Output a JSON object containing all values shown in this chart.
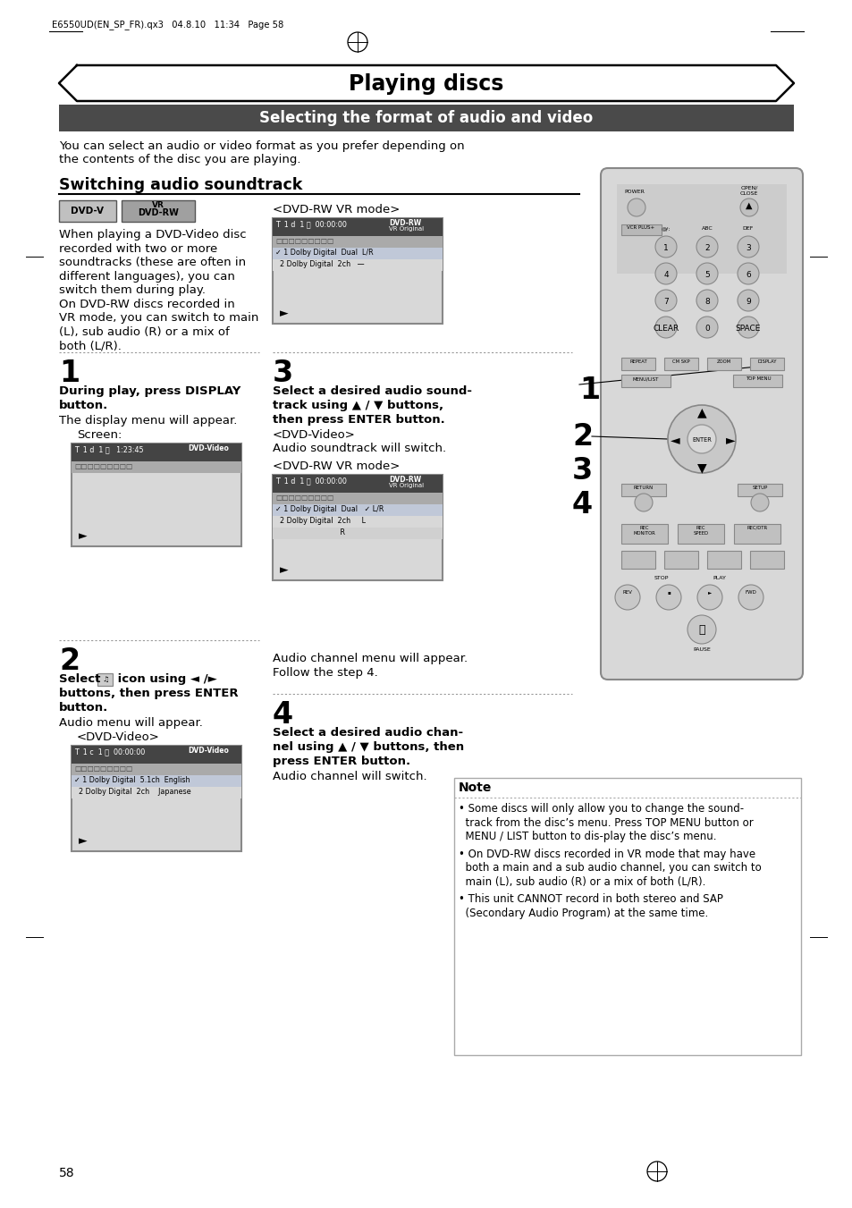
{
  "header_text": "E6550UD(EN_SP_FR).qx3   04.8.10   11:34   Page 58",
  "main_title": "Playing discs",
  "subtitle": "Selecting the format of audio and video",
  "intro_line1": "You can select an audio or video format as you prefer depending on",
  "intro_line2": "the contents of the disc you are playing.",
  "section_title": "Switching audio soundtrack",
  "body_lines": [
    "When playing a DVD-Video disc",
    "recorded with two or more",
    "soundtracks (these are often in",
    "different languages), you can",
    "switch them during play.",
    "On DVD-RW discs recorded in",
    "VR mode, you can switch to main",
    "(L), sub audio (R) or a mix of",
    "both (L/R)."
  ],
  "page_num": "58",
  "bg_color": "#ffffff",
  "subtitle_bg": "#4a4a4a",
  "dotted_color": "#aaaaaa",
  "screen_dark": "#444444",
  "screen_mid": "#999999",
  "screen_sel": "#c8d8e8",
  "screen_light": "#d4d4d4",
  "screen_border": "#888888",
  "note_border": "#aaaaaa",
  "remote_body": "#d0d0d0",
  "remote_dark": "#555555",
  "remote_btn_light": "#b8b8b8",
  "remote_btn_dark": "#888888"
}
